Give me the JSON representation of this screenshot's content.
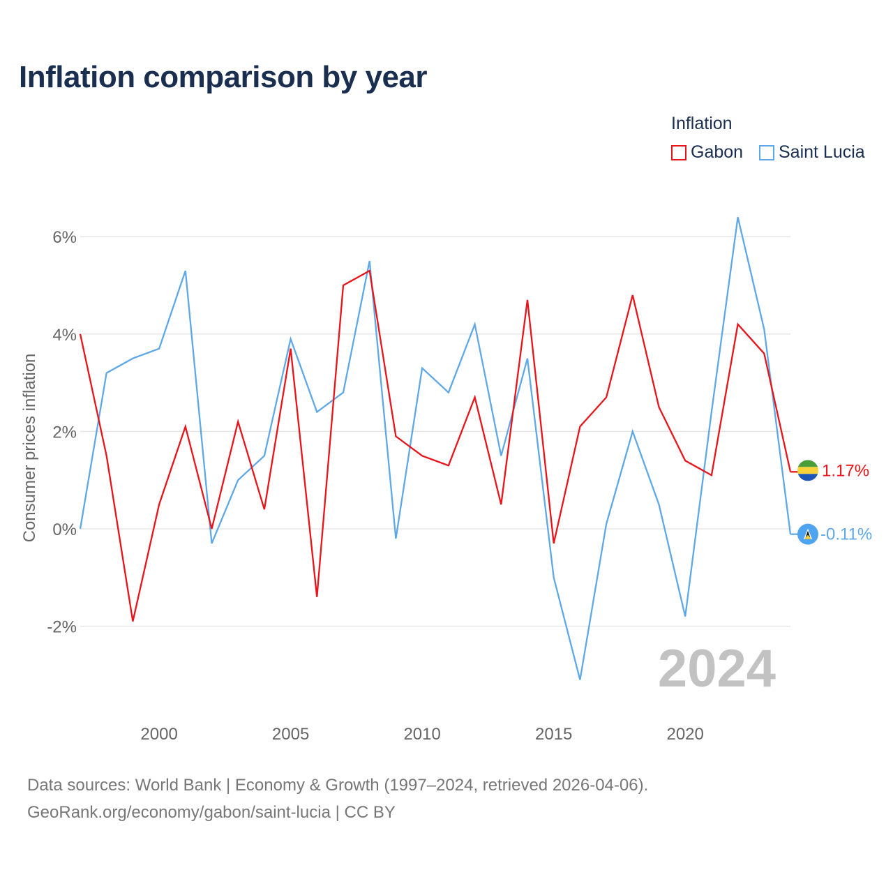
{
  "title": "Inflation comparison by year",
  "legend": {
    "title": "Inflation",
    "items": [
      {
        "label": "Gabon",
        "color": "#e8141a"
      },
      {
        "label": "Saint Lucia",
        "color": "#5fa8e8"
      }
    ]
  },
  "watermark_year": "2024",
  "end_labels": {
    "gabon": "1.17%",
    "saint_lucia": "-0.11%"
  },
  "source": {
    "line1": "Data sources: World Bank | Economy & Growth (1997–2024, retrieved 2026-04-06).",
    "line2": "GeoRank.org/economy/gabon/saint-lucia | CC BY"
  },
  "chart_data": {
    "type": "line",
    "title": "Inflation comparison by year",
    "xlabel": "",
    "ylabel": "Consumer prices inflation",
    "xlim": [
      1997,
      2024
    ],
    "ylim": [
      -3.5,
      6.5
    ],
    "y_ticks": [
      -2,
      0,
      2,
      4,
      6
    ],
    "y_tick_labels": [
      "-2%",
      "0%",
      "2%",
      "4%",
      "6%"
    ],
    "x_ticks": [
      2000,
      2005,
      2010,
      2015,
      2020
    ],
    "x_tick_labels": [
      "2000",
      "2005",
      "2010",
      "2015",
      "2020"
    ],
    "grid": true,
    "legend_position": "top-right",
    "x": [
      1997,
      1998,
      1999,
      2000,
      2001,
      2002,
      2003,
      2004,
      2005,
      2006,
      2007,
      2008,
      2009,
      2010,
      2011,
      2012,
      2013,
      2014,
      2015,
      2016,
      2017,
      2018,
      2019,
      2020,
      2021,
      2022,
      2023,
      2024
    ],
    "series": [
      {
        "name": "Gabon",
        "color": "#e8141a",
        "values": [
          4.0,
          1.5,
          -1.9,
          0.5,
          2.1,
          0.0,
          2.2,
          0.4,
          3.7,
          -1.4,
          5.0,
          5.3,
          1.9,
          1.5,
          1.3,
          2.7,
          0.5,
          4.7,
          -0.3,
          2.1,
          2.7,
          4.8,
          2.5,
          1.4,
          1.1,
          4.2,
          3.6,
          1.17
        ]
      },
      {
        "name": "Saint Lucia",
        "color": "#5fa8e8",
        "values": [
          0.0,
          3.2,
          3.5,
          3.7,
          5.3,
          -0.3,
          1.0,
          1.5,
          3.9,
          2.4,
          2.8,
          5.5,
          -0.2,
          3.3,
          2.8,
          4.2,
          1.5,
          3.5,
          -1.0,
          -3.1,
          0.1,
          2.0,
          0.5,
          -1.8,
          2.4,
          6.4,
          4.1,
          -0.11
        ]
      }
    ]
  }
}
